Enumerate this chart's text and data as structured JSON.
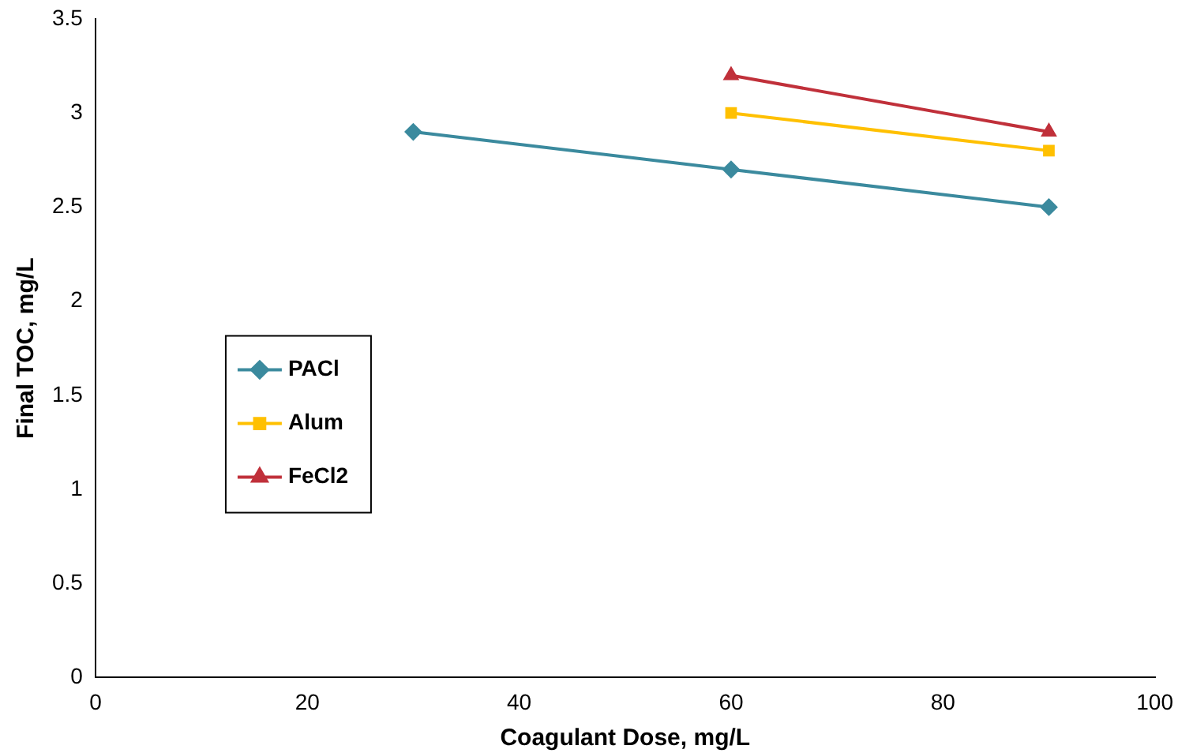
{
  "chart_data": {
    "type": "line",
    "xlabel": "Coagulant Dose, mg/L",
    "ylabel": "Final TOC, mg/L",
    "xlim": [
      0,
      100
    ],
    "xticks": [
      0,
      20,
      40,
      60,
      80,
      100
    ],
    "ylim": [
      0,
      3.5
    ],
    "yticks": [
      0,
      0.5,
      1,
      1.5,
      2,
      2.5,
      3,
      3.5
    ],
    "grid": false,
    "legend": "left",
    "line_style": "solid",
    "series": [
      {
        "name": "PACl",
        "color": "#3b8a9e",
        "marker": "diamond",
        "x": [
          30,
          60,
          90
        ],
        "values": [
          2.9,
          2.7,
          2.5
        ]
      },
      {
        "name": "Alum",
        "color": "#ffc000",
        "marker": "square",
        "x": [
          60,
          90
        ],
        "values": [
          3.0,
          2.8
        ]
      },
      {
        "name": "FeCl2",
        "color": "#c0303a",
        "marker": "triangle",
        "x": [
          60,
          90
        ],
        "values": [
          3.2,
          2.9
        ]
      }
    ]
  }
}
